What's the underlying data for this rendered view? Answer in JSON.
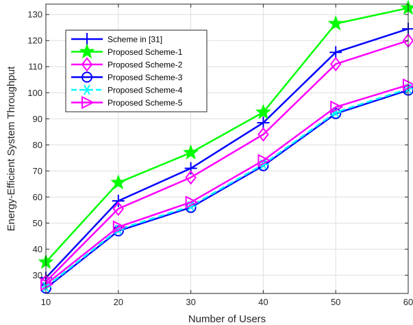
{
  "chart_data": {
    "type": "line",
    "xlabel": "Number of Users",
    "ylabel": "Energy-Efficient System Throughput",
    "x": [
      10,
      20,
      30,
      40,
      50,
      60
    ],
    "xlim": [
      10,
      60
    ],
    "ylim": [
      23,
      134
    ],
    "xticks": [
      10,
      20,
      30,
      40,
      50,
      60
    ],
    "yticks": [
      30,
      40,
      50,
      60,
      70,
      80,
      90,
      100,
      110,
      120,
      130
    ],
    "grid": true,
    "legend_position": "upper-left",
    "series": [
      {
        "name": "Scheme in [31]",
        "color": "#0000ff",
        "marker": "plus",
        "dash": "solid",
        "values": [
          29,
          58.5,
          71,
          88.5,
          115.5,
          124.5
        ]
      },
      {
        "name": "Proposed Scheme-1",
        "color": "#00ff00",
        "marker": "star",
        "dash": "solid",
        "values": [
          35,
          65.5,
          77,
          92.5,
          126.5,
          132.5
        ]
      },
      {
        "name": "Proposed Scheme-2",
        "color": "#ff00ff",
        "marker": "diamond",
        "dash": "solid",
        "values": [
          27.5,
          55.5,
          67.5,
          84,
          111,
          120
        ]
      },
      {
        "name": "Proposed Scheme-3",
        "color": "#0000ff",
        "marker": "circle",
        "dash": "solid",
        "values": [
          25,
          47,
          56,
          72,
          92,
          101
        ]
      },
      {
        "name": "Proposed Scheme-4",
        "color": "#00ffff",
        "marker": "asterisk",
        "dash": "dashed",
        "values": [
          25.5,
          47.5,
          56.5,
          72.5,
          92.5,
          101.5
        ]
      },
      {
        "name": "Proposed Scheme-5",
        "color": "#ff00ff",
        "marker": "triangle-right",
        "dash": "solid",
        "values": [
          26.5,
          48.5,
          58,
          74,
          94.5,
          103
        ]
      }
    ]
  }
}
